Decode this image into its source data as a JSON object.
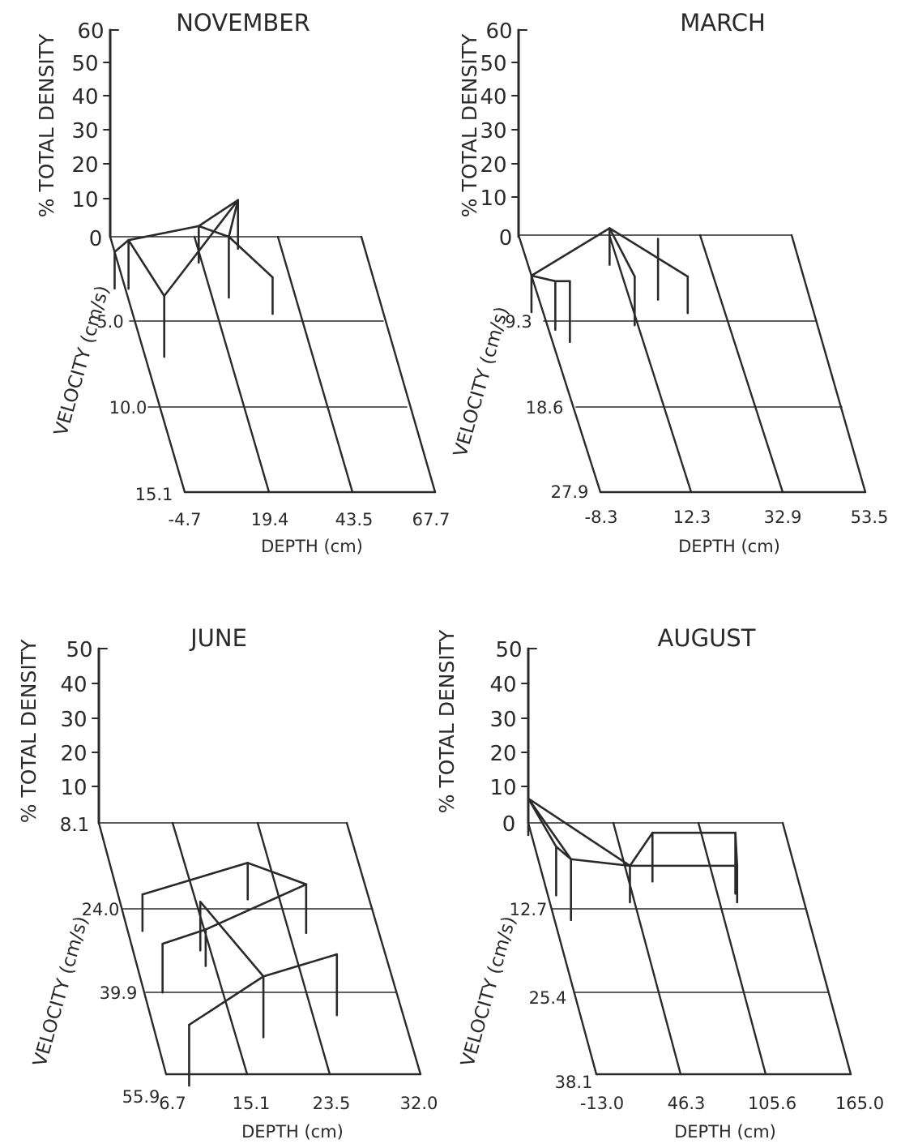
{
  "chart_data": [
    {
      "type": "3d-line",
      "title": "NOVEMBER",
      "xlabel": "DEPTH (cm)",
      "ylabel": "VELOCITY (cm/s)",
      "zlabel": "% TOTAL DENSITY",
      "x_ticks": [
        "-4.7",
        "19.4",
        "43.5",
        "67.7"
      ],
      "y_ticks": [
        "5.0",
        "10.0",
        "15.1"
      ],
      "z_ticks": [
        "60",
        "50",
        "40",
        "30",
        "20",
        "10",
        "0"
      ],
      "z_origin_label": "0",
      "xlim": [
        -4.7,
        67.7
      ],
      "ylim": [
        0,
        15.1
      ],
      "zlim": [
        0,
        60
      ],
      "points": [
        {
          "x": -4.7,
          "y": 0.9,
          "z": 0
        },
        {
          "x": 0.3,
          "y": 0.2,
          "z": 0
        },
        {
          "x": 5.9,
          "y": 3.5,
          "z": 0
        },
        {
          "x": 19.4,
          "y": 1.0,
          "z": 8
        },
        {
          "x": 30.0,
          "y": 1.5,
          "z": 18
        },
        {
          "x": 29.5,
          "y": 0.0,
          "z": 0
        },
        {
          "x": 38.7,
          "y": 2.4,
          "z": 0
        }
      ],
      "segments": [
        [
          0,
          1
        ],
        [
          1,
          3
        ],
        [
          3,
          4
        ],
        [
          2,
          4
        ],
        [
          1,
          2
        ],
        [
          3,
          5
        ],
        [
          4,
          5
        ],
        [
          5,
          6
        ]
      ]
    },
    {
      "type": "3d-line",
      "title": "MARCH",
      "xlabel": "DEPTH (cm)",
      "ylabel": "VELOCITY (cm/s)",
      "zlabel": "% TOTAL DENSITY",
      "x_ticks": [
        "-8.3",
        "12.3",
        "32.9",
        "53.5"
      ],
      "y_ticks": [
        "9.3",
        "18.6",
        "27.9"
      ],
      "z_ticks": [
        "60",
        "50",
        "40",
        "30",
        "20",
        "10",
        "0"
      ],
      "z_origin_label": "0",
      "xlim": [
        -8.3,
        53.5
      ],
      "ylim": [
        0,
        27.9
      ],
      "zlim": [
        0,
        60
      ],
      "points": [
        {
          "x": -8.3,
          "y": 4.4,
          "z": 0
        },
        {
          "x": -3.3,
          "y": 5.0,
          "z": 0
        },
        {
          "x": 0.0,
          "y": 5.0,
          "z": 0
        },
        {
          "x": 12.3,
          "y": 0.0,
          "z": 2
        },
        {
          "x": 15.0,
          "y": 4.5,
          "z": 0
        },
        {
          "x": 23.0,
          "y": 0.4,
          "z": 0
        },
        {
          "x": 27.0,
          "y": 4.5,
          "z": 0
        }
      ],
      "segments": [
        [
          0,
          3
        ],
        [
          3,
          6
        ],
        [
          0,
          1
        ],
        [
          1,
          2
        ],
        [
          3,
          4
        ]
      ]
    },
    {
      "type": "3d-line",
      "title": "JUNE",
      "xlabel": "DEPTH (cm)",
      "ylabel": "VELOCITY (cm/s)",
      "zlabel": "% TOTAL DENSITY",
      "x_ticks": [
        "6.7",
        "15.1",
        "23.5",
        "32.0"
      ],
      "y_ticks": [
        "24.0",
        "39.9",
        "55.9"
      ],
      "z_ticks": [
        "50",
        "40",
        "30",
        "20",
        "10"
      ],
      "z_origin_label": "8.1",
      "xlim": [
        6.7,
        32.0
      ],
      "ylim": [
        8.1,
        55.9
      ],
      "zlim": [
        0,
        50
      ],
      "points": [
        {
          "x": 9.2,
          "y": 21.7,
          "z": 0
        },
        {
          "x": 9.9,
          "y": 31.1,
          "z": 0
        },
        {
          "x": 10.4,
          "y": 46.5,
          "z": 0
        },
        {
          "x": 14.5,
          "y": 29.7,
          "z": 2
        },
        {
          "x": 14.9,
          "y": 23.1,
          "z": 0
        },
        {
          "x": 19.3,
          "y": 37.3,
          "z": 0
        },
        {
          "x": 20.8,
          "y": 15.7,
          "z": 0
        },
        {
          "x": 25.7,
          "y": 23.1,
          "z": 5
        },
        {
          "x": 27.4,
          "y": 33.1,
          "z": 0
        }
      ],
      "segments": [
        [
          0,
          6
        ],
        [
          6,
          7
        ],
        [
          1,
          3
        ],
        [
          3,
          7
        ],
        [
          2,
          5
        ],
        [
          5,
          8
        ],
        [
          4,
          5
        ]
      ]
    },
    {
      "type": "3d-line",
      "title": "AUGUST",
      "xlabel": "DEPTH (cm)",
      "ylabel": "VELOCITY (cm/s)",
      "zlabel": "% TOTAL DENSITY",
      "x_ticks": [
        "-13.0",
        "46.3",
        "105.6",
        "165.0"
      ],
      "y_ticks": [
        "12.7",
        "25.4",
        "38.1"
      ],
      "z_ticks": [
        "50",
        "40",
        "30",
        "20",
        "10",
        "0"
      ],
      "z_origin_label": "0",
      "xlim": [
        -13.0,
        165.0
      ],
      "ylim": [
        0,
        38.1
      ],
      "zlim": [
        0,
        50
      ],
      "points": [
        {
          "x": -13.0,
          "y": 0.0,
          "z": 7
        },
        {
          "x": 2.0,
          "y": 3.6,
          "z": 0
        },
        {
          "x": 10.0,
          "y": 5.5,
          "z": 0
        },
        {
          "x": 50.0,
          "y": 6.5,
          "z": 0
        },
        {
          "x": 72.0,
          "y": 1.5,
          "z": 0
        },
        {
          "x": 130.0,
          "y": 1.5,
          "z": 0
        },
        {
          "x": 125.0,
          "y": 6.5,
          "z": 0
        }
      ],
      "segments": [
        [
          0,
          1
        ],
        [
          0,
          2
        ],
        [
          0,
          3
        ],
        [
          1,
          2
        ],
        [
          2,
          3
        ],
        [
          3,
          6
        ],
        [
          6,
          5
        ],
        [
          5,
          4
        ],
        [
          4,
          3
        ]
      ]
    }
  ]
}
